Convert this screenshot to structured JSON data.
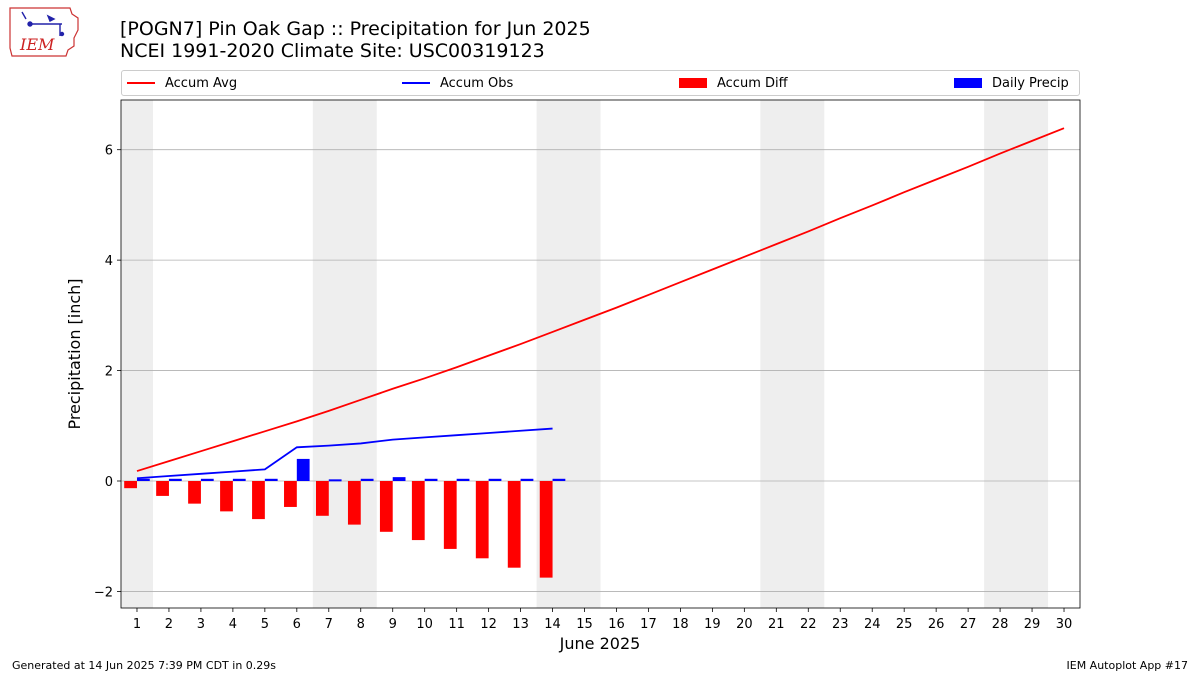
{
  "header": {
    "title": "[POGN7] Pin Oak Gap :: Precipitation for Jun 2025",
    "subtitle": "NCEI 1991-2020 Climate Site: USC00319123"
  },
  "logo": {
    "text": "IEM"
  },
  "legend": {
    "accum_avg": "Accum Avg",
    "accum_obs": "Accum Obs",
    "accum_diff": "Accum Diff",
    "daily_precip": "Daily Precip"
  },
  "footer": {
    "left": "Generated at 14 Jun 2025 7:39 PM CDT in 0.29s",
    "right": "IEM Autoplot App #17"
  },
  "colors": {
    "avg": "#ff0000",
    "obs": "#0000ff",
    "diff": "#ff0000",
    "daily": "#0000ff",
    "weekend_shade": "#eeeeee",
    "grid": "#b0b0b0"
  },
  "chart_data": {
    "type": "bar",
    "xlabel": "June 2025",
    "ylabel": "Precipitation [inch]",
    "xlim": [
      0.5,
      30.5
    ],
    "ylim": [
      -2.3,
      6.9
    ],
    "yticks": [
      -2,
      0,
      2,
      4,
      6
    ],
    "grid": "horizontal",
    "legend_placement": "top",
    "x": [
      1,
      2,
      3,
      4,
      5,
      6,
      7,
      8,
      9,
      10,
      11,
      12,
      13,
      14,
      15,
      16,
      17,
      18,
      19,
      20,
      21,
      22,
      23,
      24,
      25,
      26,
      27,
      28,
      29,
      30
    ],
    "weekend_shaded_days": [
      [
        1,
        1
      ],
      [
        7,
        8
      ],
      [
        14,
        15
      ],
      [
        21,
        22
      ],
      [
        28,
        29
      ]
    ],
    "series": [
      {
        "name": "Accum Avg",
        "kind": "line",
        "x": [
          1,
          2,
          3,
          4,
          5,
          6,
          7,
          8,
          9,
          10,
          11,
          12,
          13,
          14,
          15,
          16,
          17,
          18,
          19,
          20,
          21,
          22,
          23,
          24,
          25,
          26,
          27,
          28,
          29,
          30
        ],
        "values": [
          0.18,
          0.36,
          0.54,
          0.72,
          0.9,
          1.08,
          1.27,
          1.47,
          1.67,
          1.86,
          2.06,
          2.27,
          2.48,
          2.7,
          2.92,
          3.14,
          3.37,
          3.6,
          3.83,
          4.06,
          4.29,
          4.52,
          4.76,
          4.99,
          5.23,
          5.46,
          5.69,
          5.93,
          6.16,
          6.39
        ]
      },
      {
        "name": "Accum Obs",
        "kind": "line",
        "x": [
          1,
          2,
          3,
          4,
          5,
          6,
          7,
          8,
          9,
          10,
          11,
          12,
          13,
          14
        ],
        "values": [
          0.05,
          0.09,
          0.13,
          0.17,
          0.21,
          0.61,
          0.64,
          0.68,
          0.75,
          0.79,
          0.83,
          0.87,
          0.91,
          0.95
        ]
      },
      {
        "name": "Accum Diff",
        "kind": "bar",
        "x": [
          1,
          2,
          3,
          4,
          5,
          6,
          7,
          8,
          9,
          10,
          11,
          12,
          13,
          14
        ],
        "values": [
          -0.13,
          -0.27,
          -0.41,
          -0.55,
          -0.69,
          -0.47,
          -0.63,
          -0.79,
          -0.92,
          -1.07,
          -1.23,
          -1.4,
          -1.57,
          -1.75
        ]
      },
      {
        "name": "Daily Precip",
        "kind": "bar",
        "x": [
          1,
          2,
          3,
          4,
          5,
          6,
          7,
          8,
          9,
          10,
          11,
          12,
          13,
          14
        ],
        "values": [
          0.04,
          0.04,
          0.04,
          0.04,
          0.04,
          0.4,
          0.03,
          0.04,
          0.07,
          0.04,
          0.04,
          0.04,
          0.04,
          0.04
        ]
      }
    ]
  }
}
